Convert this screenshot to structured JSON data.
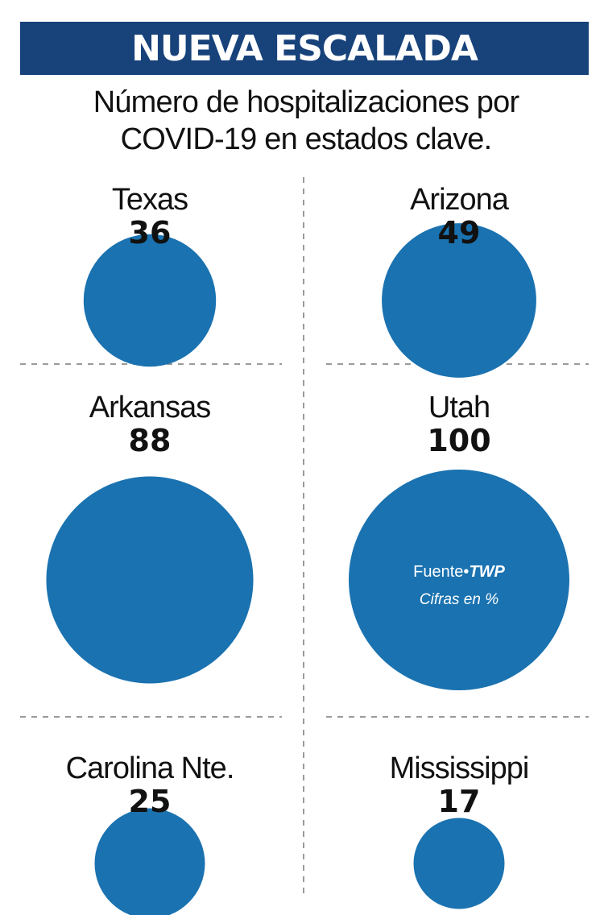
{
  "header": {
    "title": "NUEVA ESCALADA",
    "subtitle_line1": "Número de hospitalizaciones por",
    "subtitle_line2": "COVID-19 en estados clave."
  },
  "note": {
    "source_prefix": "Fuente•",
    "source_name": "TWP",
    "units": "Cifras en %"
  },
  "colors": {
    "bubble": "#1a72b0",
    "title_bar": "#17427a",
    "divider": "#9a9a9a"
  },
  "chart_data": {
    "type": "bubble",
    "title": "NUEVA ESCALADA",
    "subtitle": "Número de hospitalizaciones por COVID-19 en estados clave.",
    "categories": [
      "Texas",
      "Arizona",
      "Arkansas",
      "Utah",
      "Carolina Nte.",
      "Mississippi"
    ],
    "values": [
      36,
      49,
      88,
      100,
      25,
      17
    ],
    "value_labels": [
      "36",
      "49",
      "88",
      "100",
      "25",
      "17"
    ],
    "layout": "grid-2-columns"
  }
}
